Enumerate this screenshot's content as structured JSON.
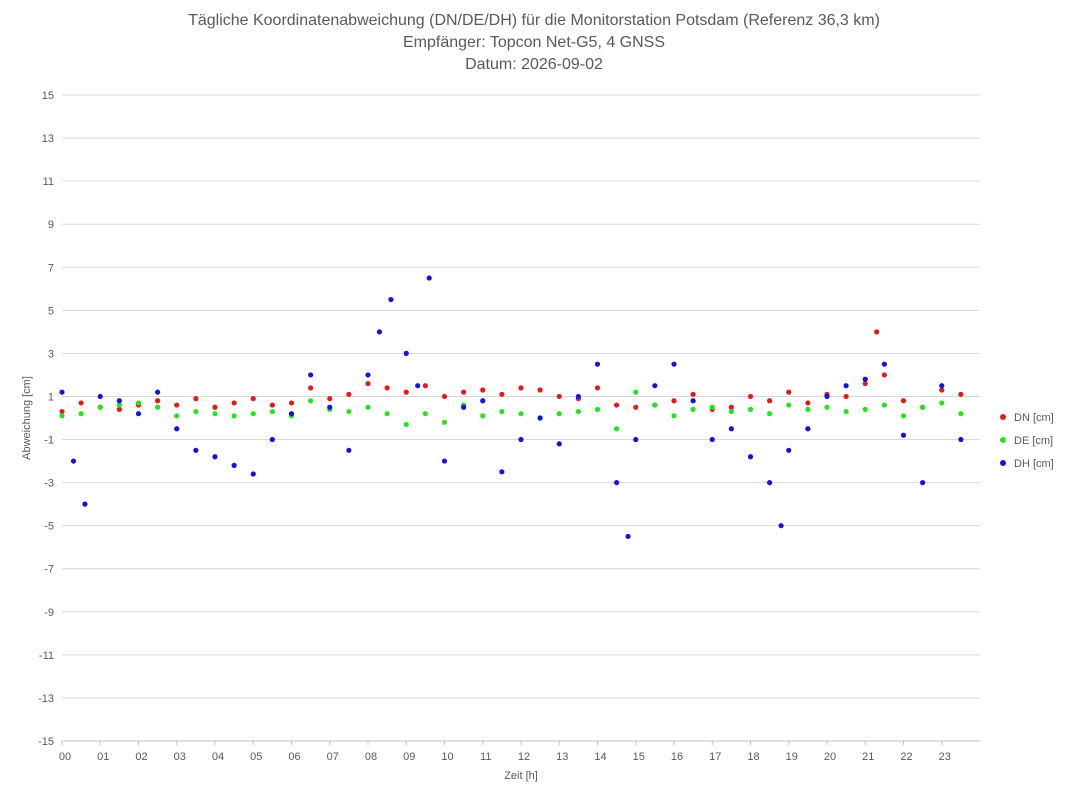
{
  "chart_data": {
    "type": "scatter",
    "title": "Tägliche Koordinatenabweichung (DN/DE/DH) für die Monitorstation Potsdam (Referenz 36,3 km)",
    "subtitle1": "Empfänger: Topcon Net-G5, 4 GNSS",
    "subtitle2": "Datum: 2026-09-02",
    "xlabel": "Zeit [h]",
    "ylabel": "Abweichung [cm]",
    "xlim": [
      0,
      24
    ],
    "ylim": [
      -15,
      15
    ],
    "x_tick_labels": [
      "00",
      "01",
      "02",
      "03",
      "04",
      "05",
      "06",
      "07",
      "08",
      "09",
      "10",
      "11",
      "12",
      "13",
      "14",
      "15",
      "16",
      "17",
      "18",
      "19",
      "20",
      "21",
      "22",
      "23"
    ],
    "y_tick_labels": [
      "15",
      "13",
      "11",
      "9",
      "7",
      "5",
      "3",
      "1",
      "-1",
      "-3",
      "-5",
      "-7",
      "-9",
      "-11",
      "-13",
      "-15"
    ],
    "grid": "horizontal",
    "legend_position": "right",
    "series": [
      {
        "name": "DN [cm]",
        "color": "#e31a1c",
        "x": [
          0.0,
          0.5,
          1.0,
          1.5,
          2.0,
          2.5,
          3.0,
          3.5,
          4.0,
          4.5,
          5.0,
          5.5,
          6.0,
          6.5,
          7.0,
          7.5,
          8.0,
          8.5,
          9.0,
          9.5,
          10.0,
          10.5,
          11.0,
          11.5,
          12.0,
          12.5,
          13.0,
          13.5,
          14.0,
          14.5,
          15.0,
          15.5,
          16.0,
          16.5,
          17.0,
          17.5,
          18.0,
          18.5,
          19.0,
          19.5,
          20.0,
          20.5,
          21.0,
          21.3,
          21.5,
          22.0,
          22.5,
          23.0,
          23.5
        ],
        "y": [
          0.3,
          0.7,
          0.5,
          0.4,
          0.6,
          0.8,
          0.6,
          0.9,
          0.5,
          0.7,
          0.9,
          0.6,
          0.7,
          1.4,
          0.9,
          1.1,
          1.6,
          1.4,
          1.2,
          1.5,
          1.0,
          1.2,
          1.3,
          1.1,
          1.4,
          1.3,
          1.0,
          0.9,
          1.4,
          0.6,
          0.5,
          0.6,
          0.8,
          1.1,
          0.4,
          0.5,
          1.0,
          0.8,
          1.2,
          0.7,
          1.1,
          1.0,
          1.6,
          4.0,
          2.0,
          0.8,
          0.5,
          1.3,
          1.1
        ]
      },
      {
        "name": "DE [cm]",
        "color": "#22e51b",
        "x": [
          0.0,
          0.5,
          1.0,
          1.5,
          2.0,
          2.5,
          3.0,
          3.5,
          4.0,
          4.5,
          5.0,
          5.5,
          6.0,
          6.5,
          7.0,
          7.5,
          8.0,
          8.5,
          9.0,
          9.5,
          10.0,
          10.5,
          11.0,
          11.5,
          12.0,
          12.5,
          13.0,
          13.5,
          14.0,
          14.5,
          15.0,
          15.5,
          16.0,
          16.5,
          17.0,
          17.5,
          18.0,
          18.5,
          19.0,
          19.5,
          20.0,
          20.5,
          21.0,
          21.5,
          22.0,
          22.5,
          23.0,
          23.5
        ],
        "y": [
          0.1,
          0.2,
          0.5,
          0.6,
          0.7,
          0.5,
          0.1,
          0.3,
          0.2,
          0.1,
          0.2,
          0.3,
          0.1,
          0.8,
          0.4,
          0.3,
          0.5,
          0.2,
          -0.3,
          0.2,
          -0.2,
          0.6,
          0.1,
          0.3,
          0.2,
          0.0,
          0.2,
          0.3,
          0.4,
          -0.5,
          1.2,
          0.6,
          0.1,
          0.4,
          0.5,
          0.3,
          0.4,
          0.2,
          0.6,
          0.4,
          0.5,
          0.3,
          0.4,
          0.6,
          0.1,
          0.5,
          0.7,
          0.2
        ]
      },
      {
        "name": "DH [cm]",
        "color": "#1413d9",
        "x": [
          0.0,
          0.3,
          0.6,
          1.0,
          1.5,
          2.0,
          2.5,
          3.0,
          3.5,
          4.0,
          4.5,
          5.0,
          5.5,
          6.0,
          6.5,
          7.0,
          7.5,
          8.0,
          8.3,
          8.6,
          9.0,
          9.3,
          9.6,
          10.0,
          10.5,
          11.0,
          11.5,
          12.0,
          12.5,
          13.0,
          13.5,
          14.0,
          14.5,
          14.8,
          15.0,
          15.5,
          16.0,
          16.5,
          17.0,
          17.5,
          18.0,
          18.5,
          18.8,
          19.0,
          19.5,
          20.0,
          20.5,
          21.0,
          21.5,
          22.0,
          22.5,
          23.0,
          23.5
        ],
        "y": [
          1.2,
          -2.0,
          -4.0,
          1.0,
          0.8,
          0.2,
          1.2,
          -0.5,
          -1.5,
          -1.8,
          -2.2,
          -2.6,
          -1.0,
          0.2,
          2.0,
          0.5,
          -1.5,
          2.0,
          4.0,
          5.5,
          3.0,
          1.5,
          6.5,
          -2.0,
          0.5,
          0.8,
          -2.5,
          -1.0,
          0.0,
          -1.2,
          1.0,
          2.5,
          -3.0,
          -5.5,
          -1.0,
          1.5,
          2.5,
          0.8,
          -1.0,
          -0.5,
          -1.8,
          -3.0,
          -5.0,
          -1.5,
          -0.5,
          1.0,
          1.5,
          1.8,
          2.5,
          -0.8,
          -3.0,
          1.5,
          -1.0
        ]
      }
    ]
  }
}
